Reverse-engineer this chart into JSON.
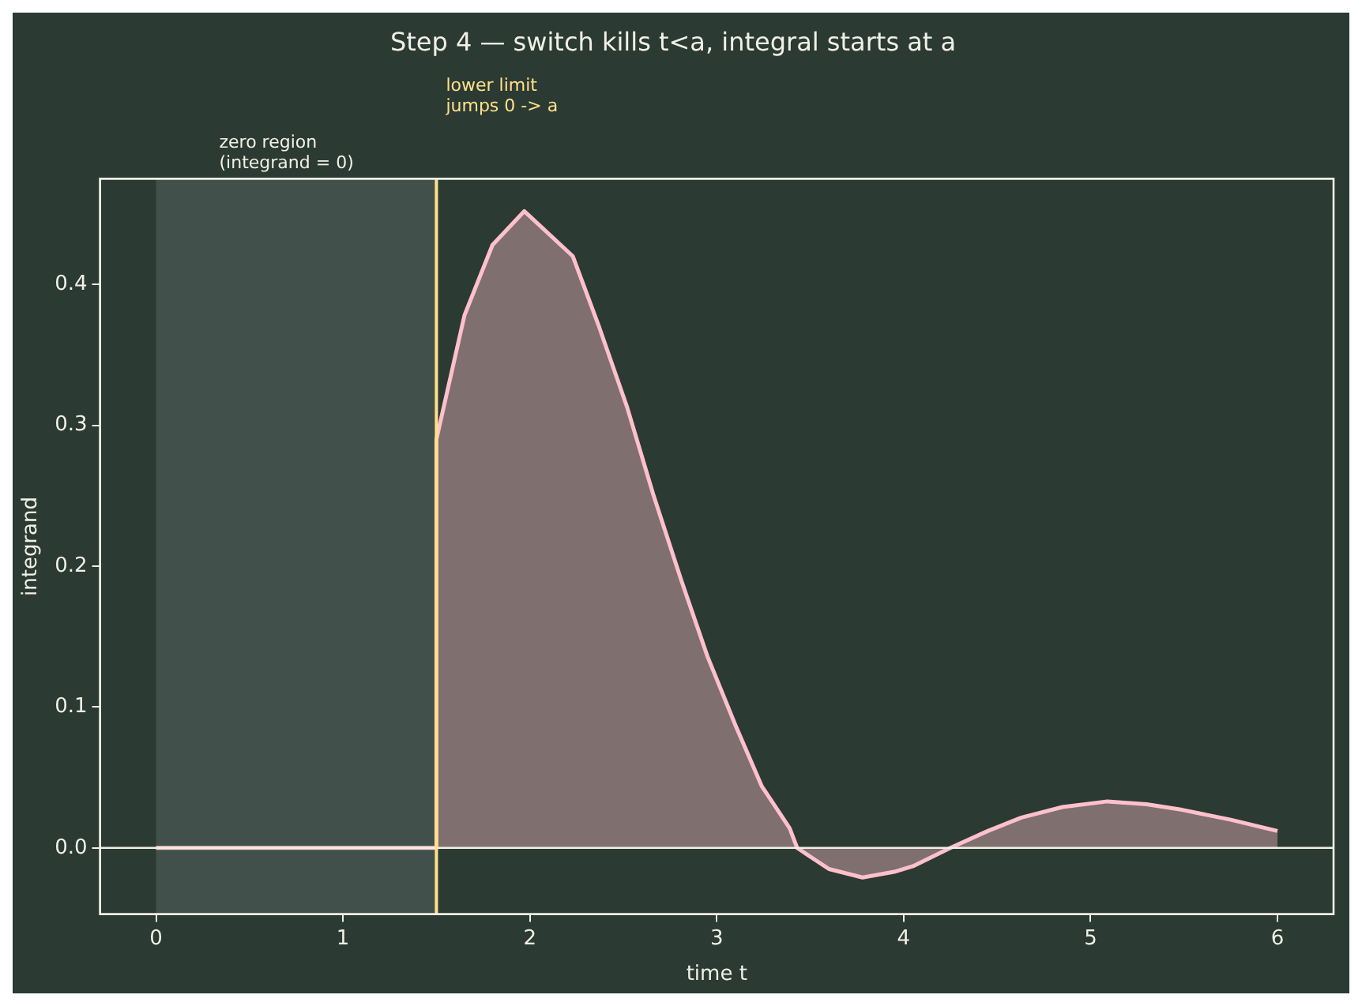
{
  "chart_data": {
    "type": "area",
    "title": "Step 4 — switch kills t<a, integral starts at a",
    "xlabel": "time t",
    "ylabel": "integrand",
    "xlim": [
      -0.3,
      6.3
    ],
    "ylim": [
      -0.047,
      0.475
    ],
    "xticks": [
      0,
      1,
      2,
      3,
      4,
      5,
      6
    ],
    "yticks": [
      {
        "value": 0,
        "label": "0.0"
      },
      {
        "value": 0.1,
        "label": "0.1"
      },
      {
        "value": 0.2,
        "label": "0.2"
      },
      {
        "value": 0.3,
        "label": "0.3"
      },
      {
        "value": 0.4,
        "label": "0.4"
      }
    ],
    "series": [
      {
        "color": "#ffc0cb",
        "x": [
          0,
          0.5,
          1,
          1.5,
          1.5,
          1.65,
          1.8,
          1.97,
          2.23,
          2.37,
          2.52,
          2.66,
          2.81,
          2.95,
          3.1,
          3.24,
          3.39,
          3.43,
          3.6,
          3.78,
          3.95,
          4.05,
          4.25,
          4.45,
          4.63,
          4.85,
          5.09,
          5.3,
          5.49,
          5.75,
          6.0
        ],
        "values": [
          0,
          0,
          0,
          0,
          0.29,
          0.378,
          0.428,
          0.452,
          0.42,
          0.37,
          0.313,
          0.251,
          0.19,
          0.136,
          0.087,
          0.044,
          0.014,
          0,
          -0.015,
          -0.021,
          -0.017,
          -0.013,
          0,
          0.012,
          0.0215,
          0.029,
          0.033,
          0.031,
          0.027,
          0.02,
          0.012
        ]
      }
    ],
    "ref_lines": [
      {
        "axis": "y",
        "value": 0,
        "color": "#f0f0e6"
      },
      {
        "axis": "x",
        "value": 1.5,
        "label": "lower limit\njumps 0 -> a",
        "color": "#ffe08a"
      }
    ],
    "bands": [
      {
        "axis": "x",
        "from": 0,
        "to": 1.5,
        "label": "zero region\n(integrand = 0)",
        "color": "#41504a"
      }
    ]
  }
}
